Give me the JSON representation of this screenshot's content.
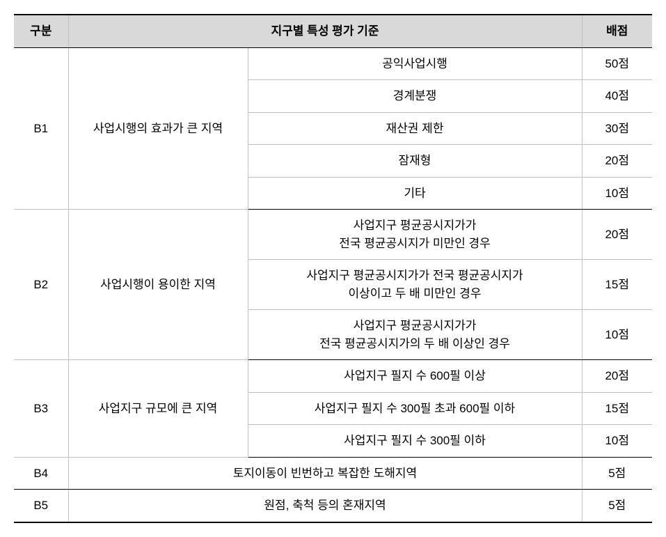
{
  "header": {
    "gubun": "구분",
    "criteria": "지구별 특성 평가 기준",
    "score": "배점"
  },
  "b1": {
    "code": "B1",
    "desc": "사업시행의 효과가 큰 지역",
    "rows": [
      {
        "detail": "공익사업시행",
        "score": "50점"
      },
      {
        "detail": "경계분쟁",
        "score": "40점"
      },
      {
        "detail": "재산권 제한",
        "score": "30점"
      },
      {
        "detail": "잠재형",
        "score": "20점"
      },
      {
        "detail": "기타",
        "score": "10점"
      }
    ]
  },
  "b2": {
    "code": "B2",
    "desc": "사업시행이 용이한 지역",
    "rows": [
      {
        "detail": "사업지구 평균공시지가가\n전국 평균공시지가 미만인 경우",
        "score": "20점"
      },
      {
        "detail": "사업지구 평균공시지가가 전국 평균공시지가\n이상이고 두 배 미만인 경우",
        "score": "15점"
      },
      {
        "detail": "사업지구 평균공시지가가\n전국 평균공시지가의 두 배 이상인 경우",
        "score": "10점"
      }
    ]
  },
  "b3": {
    "code": "B3",
    "desc": "사업지구 규모에 큰 지역",
    "rows": [
      {
        "detail": "사업지구 필지 수 600필 이상",
        "score": "20점"
      },
      {
        "detail": "사업지구 필지 수 300필 초과 600필 이하",
        "score": "15점"
      },
      {
        "detail": "사업지구 필지 수 300필 이하",
        "score": "10점"
      }
    ]
  },
  "b4": {
    "code": "B4",
    "detail": "토지이동이 빈번하고 복잡한 도해지역",
    "score": "5점"
  },
  "b5": {
    "code": "B5",
    "detail": "원점, 축척 등의 혼재지역",
    "score": "5점"
  }
}
